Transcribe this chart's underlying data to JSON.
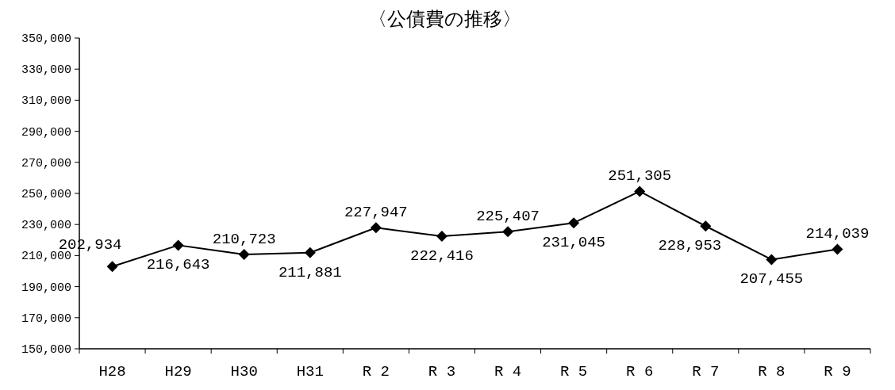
{
  "chart_data": {
    "type": "line",
    "title": "〈公債費の推移〉",
    "categories": [
      "H28",
      "H29",
      "H30",
      "H31",
      "R 2",
      "R 3",
      "R 4",
      "R 5",
      "R 6",
      "R 7",
      "R 8",
      "R 9"
    ],
    "series": [
      {
        "color": "#000000",
        "values": [
          202934,
          216643,
          210723,
          211881,
          227947,
          222416,
          225407,
          231045,
          251305,
          228953,
          207455,
          214039
        ],
        "value_labels": [
          "202,934",
          "216,643",
          "210,723",
          "211,881",
          "227,947",
          "222,416",
          "225,407",
          "231,045",
          "251,305",
          "228,953",
          "207,455",
          "214,039"
        ]
      }
    ],
    "ylim": [
      150000,
      350000
    ],
    "yticks": [
      {
        "value": 150000,
        "label": "150,000"
      },
      {
        "value": 170000,
        "label": "170,000"
      },
      {
        "value": 190000,
        "label": "190,000"
      },
      {
        "value": 210000,
        "label": "210,000"
      },
      {
        "value": 230000,
        "label": "230,000"
      },
      {
        "value": 250000,
        "label": "250,000"
      },
      {
        "value": 270000,
        "label": "270,000"
      },
      {
        "value": 290000,
        "label": "290,000"
      },
      {
        "value": 310000,
        "label": "310,000"
      },
      {
        "value": 330000,
        "label": "330,000"
      },
      {
        "value": 350000,
        "label": "350,000"
      }
    ],
    "marker": "diamond"
  }
}
